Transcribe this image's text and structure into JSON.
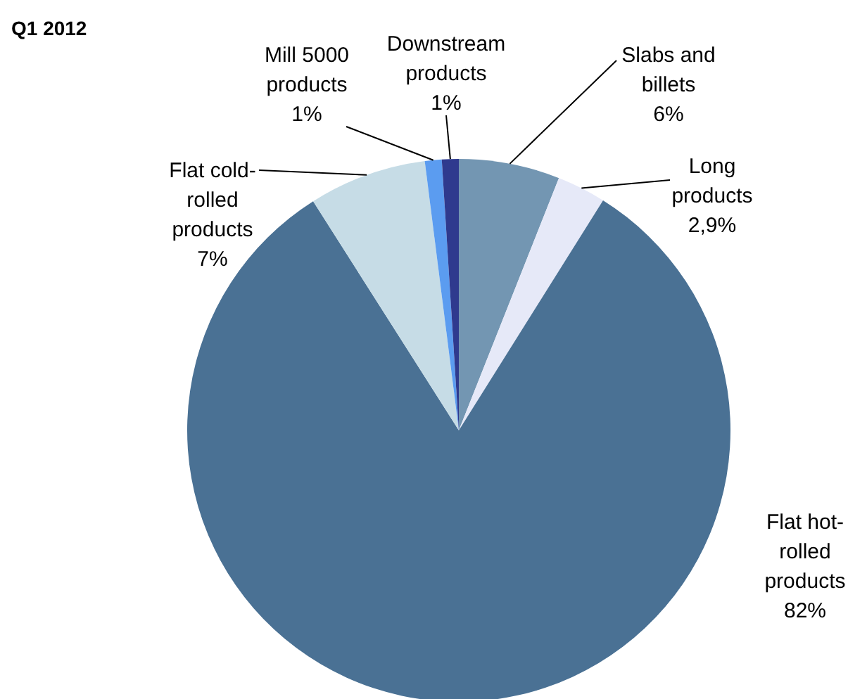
{
  "chart_data": {
    "type": "pie",
    "title": "Q1 2012",
    "categories": [
      "Slabs and\nbillets",
      "Long\nproducts",
      "Flat hot-\nrolled\nproducts",
      "Flat cold-\nrolled\nproducts",
      "Mill 5000\nproducts",
      "Downstream\nproducts"
    ],
    "values": [
      6,
      2.9,
      82,
      7,
      1,
      1
    ],
    "colors": [
      "#7396b2",
      "#e6e9f8",
      "#4a7194",
      "#c6dce6",
      "#5b9cf0",
      "#2f3a8e"
    ],
    "value_labels": [
      "6%",
      "2,9%",
      "82%",
      "7%",
      "1%",
      "1%"
    ]
  }
}
